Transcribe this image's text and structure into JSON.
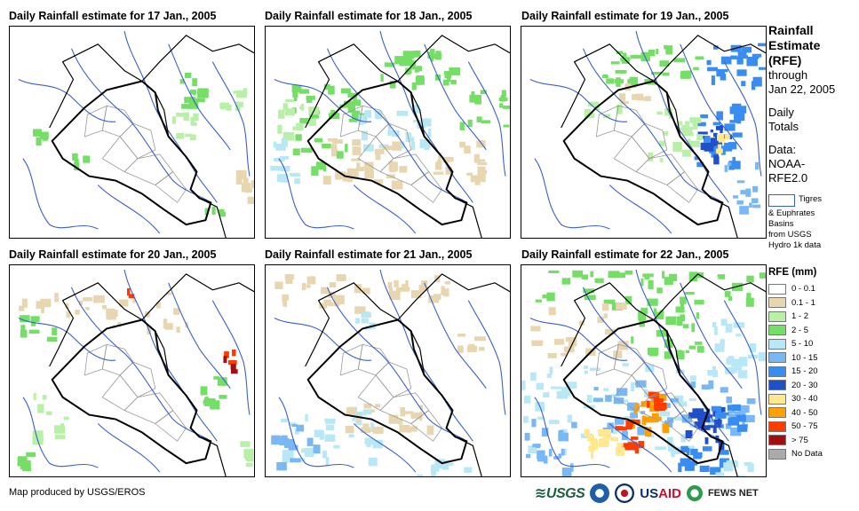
{
  "panels": [
    {
      "title": "Daily Rainfall estimate for 17 Jan., 2005"
    },
    {
      "title": "Daily Rainfall estimate for 18 Jan., 2005"
    },
    {
      "title": "Daily Rainfall estimate for 19 Jan., 2005"
    },
    {
      "title": "Daily Rainfall estimate for 20 Jan., 2005"
    },
    {
      "title": "Daily Rainfall estimate for 21 Jan., 2005"
    },
    {
      "title": "Daily Rainfall estimate for 22 Jan., 2005"
    }
  ],
  "sidebar": {
    "title_lines": [
      "Rainfall",
      "Estimate",
      "(RFE)"
    ],
    "through_label": "through",
    "through_date": "Jan 22, 2005",
    "totals_lines": [
      "Daily",
      "Totals"
    ],
    "data_lines": [
      "Data:",
      "NOAA-",
      "RFE2.0"
    ],
    "basin_lines": [
      "Tigres",
      "& Euphrates",
      "Basins",
      "from USGS",
      "Hydro 1k data"
    ]
  },
  "legend": {
    "title": "RFE (mm)",
    "items": [
      {
        "label": "0 - 0.1",
        "color": "#ffffff"
      },
      {
        "label": "0.1 - 1",
        "color": "#e8d6b0"
      },
      {
        "label": "1 - 2",
        "color": "#b9f0a8"
      },
      {
        "label": "2 - 5",
        "color": "#74de66"
      },
      {
        "label": "5 - 10",
        "color": "#b8e8f5"
      },
      {
        "label": "10 - 15",
        "color": "#7ab8f5"
      },
      {
        "label": "15 - 20",
        "color": "#3a8df0"
      },
      {
        "label": "20 - 30",
        "color": "#2050c8"
      },
      {
        "label": "30 - 40",
        "color": "#ffe890"
      },
      {
        "label": "40 - 50",
        "color": "#ffa000"
      },
      {
        "label": "50 - 75",
        "color": "#ff3c00"
      },
      {
        "label": "> 75",
        "color": "#a01010"
      },
      {
        "label": "No Data",
        "color": "#aaaaaa"
      }
    ]
  },
  "footer": {
    "credit": "Map produced by USGS/EROS"
  },
  "logos": {
    "usgs": "USGS",
    "usaid_us": "US",
    "usaid_aid": "AID",
    "fews": "FEWS NET"
  }
}
